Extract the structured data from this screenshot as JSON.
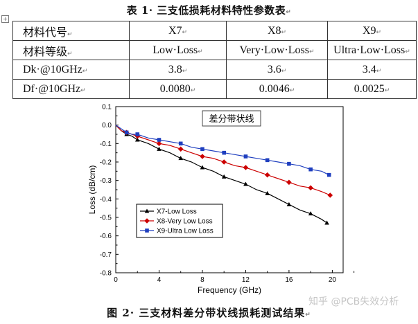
{
  "table_caption": "表 1· 三支低损耗材料特性参数表",
  "paragraph_mark": "↵",
  "table": {
    "rows": [
      {
        "label": "材料代号",
        "cells": [
          "X7",
          "X8",
          "X9"
        ]
      },
      {
        "label": "材料等级",
        "cells": [
          "Low·Loss",
          "Very·Low·Loss",
          "Ultra·Low·Loss"
        ]
      },
      {
        "label": "Dk·@10GHz",
        "cells": [
          "3.8",
          "3.6",
          "3.4"
        ]
      },
      {
        "label": "Df·@10GHz",
        "cells": [
          "0.0080",
          "0.0046",
          "0.0025"
        ]
      }
    ]
  },
  "chart_data": {
    "type": "line",
    "annotation": "差分带状线",
    "xlabel": "Frequency (GHz)",
    "ylabel": "Loss (dB/cm)",
    "xlim": [
      0,
      21
    ],
    "ylim": [
      -0.8,
      0.1
    ],
    "x_ticks": [
      "0",
      "4",
      "8",
      "12",
      "16",
      "20"
    ],
    "y_ticks": [
      "0.1",
      "0.0",
      "-0.1",
      "-0.2",
      "-0.3",
      "-0.4",
      "-0.5",
      "-0.6",
      "-0.7",
      "-0.8"
    ],
    "legend_position": "lower-left",
    "series": [
      {
        "name": "X7-Low Loss",
        "color": "#000000",
        "marker": "triangle",
        "x": [
          0,
          0.5,
          1,
          1.5,
          2,
          3,
          4,
          5,
          6,
          7,
          8,
          9,
          10,
          11,
          12,
          13,
          14,
          15,
          16,
          17,
          18,
          19,
          19.5
        ],
        "y": [
          0,
          -0.03,
          -0.05,
          -0.06,
          -0.08,
          -0.1,
          -0.13,
          -0.15,
          -0.18,
          -0.2,
          -0.23,
          -0.25,
          -0.28,
          -0.3,
          -0.32,
          -0.35,
          -0.37,
          -0.4,
          -0.43,
          -0.46,
          -0.48,
          -0.51,
          -0.53
        ]
      },
      {
        "name": "X8-Very Low Loss",
        "color": "#cc0000",
        "marker": "diamond",
        "x": [
          0,
          0.5,
          1,
          1.5,
          2,
          3,
          4,
          5,
          6,
          7,
          8,
          9,
          10,
          11,
          12,
          13,
          14,
          15,
          16,
          17,
          18,
          19,
          19.8
        ],
        "y": [
          0,
          -0.03,
          -0.04,
          -0.05,
          -0.06,
          -0.08,
          -0.1,
          -0.11,
          -0.13,
          -0.15,
          -0.17,
          -0.18,
          -0.2,
          -0.22,
          -0.23,
          -0.25,
          -0.27,
          -0.29,
          -0.31,
          -0.33,
          -0.34,
          -0.36,
          -0.38
        ]
      },
      {
        "name": "X9-Ultra Low Loss",
        "color": "#1f3fbf",
        "marker": "square",
        "x": [
          0,
          0.5,
          1,
          1.5,
          2,
          3,
          4,
          5,
          6,
          7,
          8,
          9,
          10,
          11,
          12,
          13,
          14,
          15,
          16,
          17,
          18,
          19,
          19.7
        ],
        "y": [
          0,
          -0.02,
          -0.04,
          -0.05,
          -0.05,
          -0.07,
          -0.08,
          -0.09,
          -0.1,
          -0.12,
          -0.13,
          -0.14,
          -0.15,
          -0.16,
          -0.17,
          -0.18,
          -0.19,
          -0.2,
          -0.21,
          -0.22,
          -0.24,
          -0.25,
          -0.27
        ]
      }
    ]
  },
  "figure_caption": "图 2· 三支材料差分带状线损耗测试结果",
  "watermark": "知乎 @PCB失效分析"
}
